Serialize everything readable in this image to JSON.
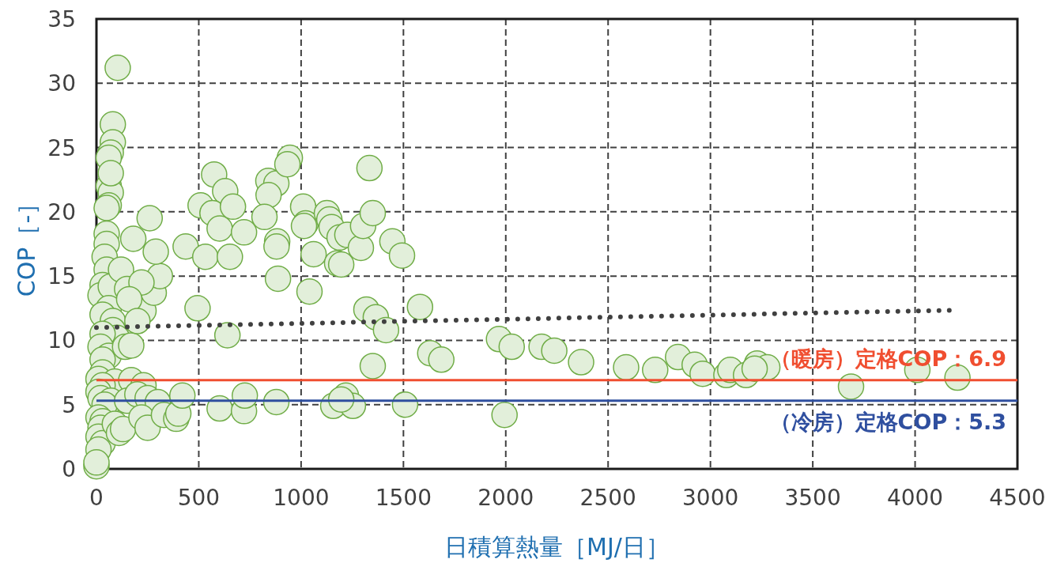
{
  "chart_data": {
    "type": "scatter",
    "xlabel": "日積算熱量［MJ/日］",
    "ylabel": "COP［-］",
    "xlim": [
      0,
      4500
    ],
    "ylim": [
      0,
      35
    ],
    "xticks": [
      0,
      500,
      1000,
      1500,
      2000,
      2500,
      3000,
      3500,
      4000,
      4500
    ],
    "yticks": [
      0,
      5,
      10,
      15,
      20,
      25,
      30,
      35
    ],
    "grid": true,
    "marker": "circle",
    "series": [
      {
        "type": "scatter",
        "color": "#e2efda",
        "x": [
          104,
          80,
          80,
          70,
          60,
          60,
          70,
          70,
          60,
          50,
          50,
          50,
          40,
          50,
          30,
          20,
          70,
          60,
          30,
          80,
          80,
          100,
          30,
          20,
          60,
          30,
          140,
          30,
          10,
          90,
          30,
          10,
          20,
          70,
          40,
          10,
          30,
          20,
          10,
          30,
          10,
          0,
          0,
          90,
          110,
          130,
          170,
          230,
          150,
          200,
          250,
          300,
          220,
          250,
          330,
          390,
          400,
          420,
          180,
          120,
          150,
          170,
          230,
          280,
          310,
          290,
          260,
          220,
          160,
          200,
          509,
          575,
          629,
          567,
          602,
          667,
          721,
          436,
          532,
          652,
          494,
          640,
          840,
          879,
          841,
          945,
          933,
          821,
          883,
          880,
          887,
          1010,
          1022,
          1014,
          1061,
          1041,
          1126,
          1138,
          1149,
          1188,
          1176,
          1196,
          1226,
          1292,
          1303,
          1334,
          1350,
          1446,
          1493,
          1319,
          1365,
          1415,
          1350,
          1581,
          1631,
          1685,
          602,
          721,
          725,
          879,
          1157,
          1219,
          1253,
          1508,
          1196,
          1967,
          2029,
          2175,
          2237,
          2368,
          1994,
          2588,
          2730,
          2842,
          2923,
          2962,
          3078,
          3097,
          3174,
          3228,
          3278,
          3216,
          3687,
          4011,
          4207
        ],
        "values": [
          31.2,
          26.8,
          25.4,
          24.6,
          24.2,
          22.0,
          21.5,
          23.0,
          20.5,
          20.3,
          18.3,
          17.5,
          16.5,
          15.5,
          14.3,
          13.5,
          14.2,
          12.5,
          12.0,
          11.5,
          10.8,
          10.2,
          10.5,
          9.5,
          8.8,
          8.5,
          9.5,
          7.5,
          7.0,
          6.8,
          6.5,
          6.0,
          5.5,
          5.3,
          5.0,
          4.0,
          3.7,
          3.2,
          2.5,
          2.0,
          1.5,
          0.2,
          0.5,
          3.5,
          2.8,
          3.1,
          6.9,
          6.5,
          5.3,
          5.8,
          5.5,
          5.2,
          4.0,
          3.2,
          4.2,
          3.9,
          4.3,
          5.7,
          17.9,
          15.5,
          14.0,
          9.6,
          12.3,
          13.7,
          15.0,
          16.9,
          19.5,
          14.5,
          13.2,
          11.5,
          20.5,
          22.9,
          21.6,
          19.9,
          18.7,
          20.4,
          18.4,
          17.3,
          16.5,
          16.5,
          12.5,
          10.4,
          22.4,
          22.2,
          21.3,
          24.2,
          23.7,
          19.6,
          17.7,
          17.3,
          14.8,
          20.4,
          19.1,
          18.9,
          16.7,
          13.8,
          19.9,
          19.4,
          18.8,
          18.0,
          16.0,
          15.9,
          18.2,
          17.2,
          18.9,
          23.4,
          19.9,
          17.7,
          16.6,
          12.4,
          11.8,
          10.8,
          8.0,
          12.6,
          9.0,
          8.5,
          4.7,
          4.5,
          5.7,
          5.2,
          4.9,
          5.7,
          4.9,
          5.0,
          5.4,
          10.1,
          9.5,
          9.5,
          9.2,
          8.3,
          4.2,
          7.9,
          7.7,
          8.7,
          8.1,
          7.4,
          7.3,
          7.7,
          7.3,
          8.2,
          7.9,
          7.8,
          6.4,
          7.7,
          7.1
        ]
      },
      {
        "type": "line",
        "color": "#404040",
        "line_style": "dotted",
        "marker": "none",
        "x": [
          0,
          4200
        ],
        "values": [
          11.0,
          12.35
        ]
      }
    ],
    "ref_lines": [
      {
        "axis": "y",
        "value": 6.9,
        "label": "（暖房）定格COP：6.9",
        "color": "#f04e30"
      },
      {
        "axis": "y",
        "value": 5.3,
        "label": "（冷房）定格COP：5.3",
        "color": "#2f4f9f"
      }
    ]
  }
}
